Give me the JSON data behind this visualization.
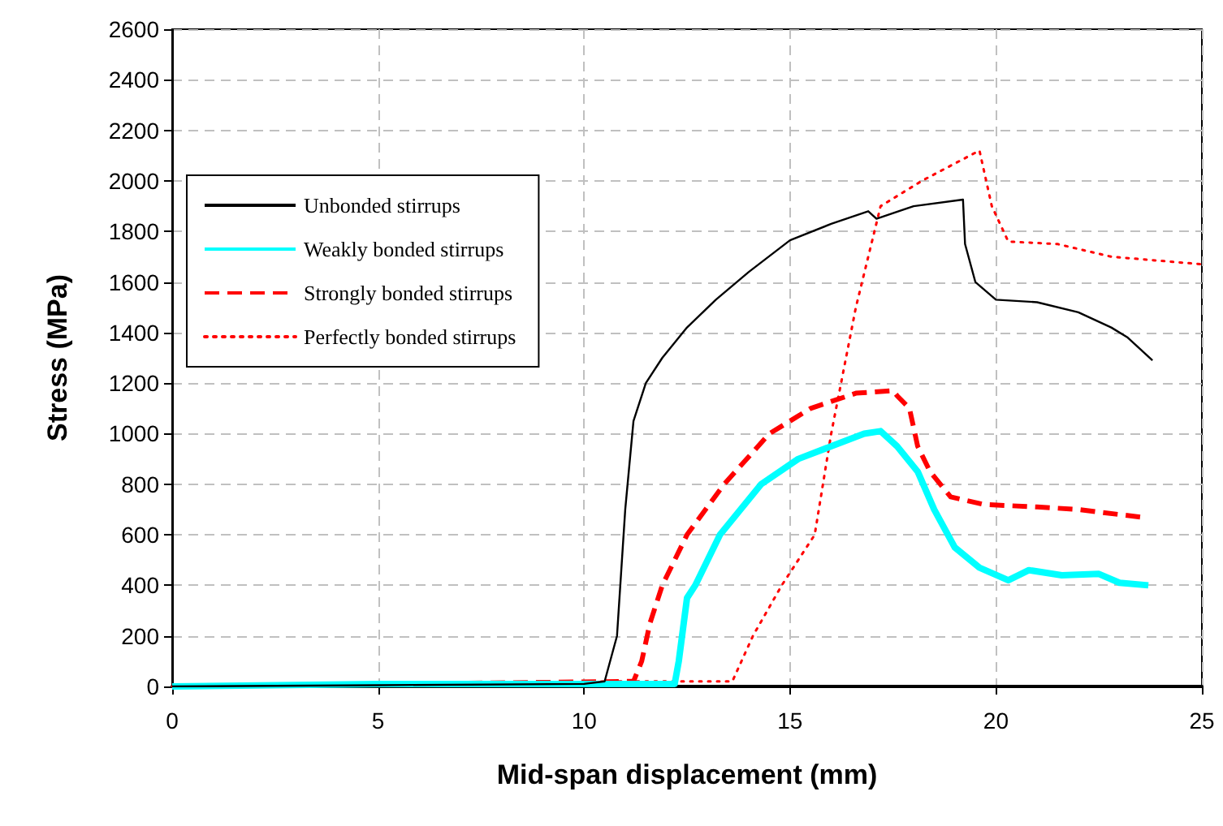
{
  "chart_data": {
    "type": "line",
    "xlabel": "Mid-span displacement (mm)",
    "ylabel": "Stress (MPa)",
    "xlim": [
      0,
      25
    ],
    "xticks": [
      0,
      5,
      10,
      15,
      20,
      25
    ],
    "ylim": [
      0,
      2600
    ],
    "yticks": [
      0,
      200,
      400,
      600,
      800,
      1000,
      1200,
      1400,
      1600,
      1800,
      2000,
      2200,
      2400,
      2600
    ],
    "grid": true,
    "legend": "top left",
    "marker": "none",
    "series": [
      {
        "name": "Unbonded stirrups",
        "color": "#000000",
        "line_style": "solid",
        "x": [
          0,
          5,
          10,
          10.5,
          10.8,
          11,
          11.2,
          11.5,
          11.9,
          12.5,
          13.2,
          14,
          15,
          16,
          16.9,
          17.1,
          18,
          19.2,
          19.25,
          19.5,
          20,
          21,
          22,
          22.8,
          23.2,
          23.8
        ],
        "values": [
          0,
          5,
          10,
          20,
          200,
          700,
          1050,
          1200,
          1300,
          1420,
          1530,
          1640,
          1765,
          1830,
          1880,
          1850,
          1900,
          1926,
          1750,
          1600,
          1530,
          1520,
          1480,
          1420,
          1380,
          1290
        ]
      },
      {
        "name": "Weakly bonded stirrups",
        "color": "#00ffff",
        "line_style": "solid",
        "x": [
          0,
          5,
          10,
          12.2,
          12.3,
          12.5,
          12.7,
          13.3,
          14.3,
          15.2,
          16,
          16.8,
          17.2,
          17.6,
          18.1,
          18.5,
          19,
          19.6,
          20.3,
          20.8,
          21.6,
          22.5,
          23,
          23.7
        ],
        "values": [
          0,
          10,
          10,
          10,
          100,
          350,
          400,
          600,
          800,
          900,
          950,
          1000,
          1010,
          950,
          850,
          700,
          550,
          470,
          420,
          460,
          440,
          445,
          410,
          400
        ]
      },
      {
        "name": "Strongly bonded stirrups",
        "color": "#ff0000",
        "line_style": "dashed",
        "x": [
          0,
          11.2,
          11.4,
          11.6,
          11.9,
          12.5,
          13.4,
          14.5,
          15.5,
          16.6,
          17.5,
          17.6,
          17.9,
          18.1,
          18.4,
          18.9,
          19.7,
          21,
          22,
          23.5
        ],
        "values": [
          0,
          20,
          100,
          250,
          400,
          600,
          800,
          1000,
          1100,
          1160,
          1170,
          1150,
          1100,
          950,
          850,
          750,
          720,
          710,
          700,
          670
        ]
      },
      {
        "name": "Perfectly bonded stirrups",
        "color": "#ff0000",
        "line_style": "dotted",
        "x": [
          0,
          11,
          13.6,
          14.1,
          14.8,
          15.6,
          16,
          16.6,
          17.2,
          18.2,
          19.6,
          19.9,
          20.3,
          21.5,
          22.8,
          25
        ],
        "values": [
          0,
          20,
          20,
          200,
          400,
          600,
          1000,
          1500,
          1900,
          2000,
          2120,
          1900,
          1760,
          1750,
          1700,
          1670
        ]
      }
    ]
  }
}
